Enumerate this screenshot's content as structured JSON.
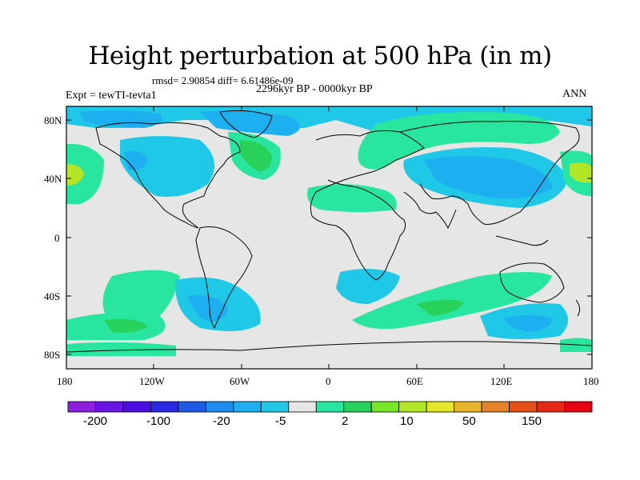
{
  "title": "Height perturbation at 500 hPa (in m)",
  "rmsd_line": "rmsd= 2.90854 diff= 6.61486e-09",
  "left_string": "Expt = tewTI-tevta1",
  "center_string": "2296kyr BP - 0000kyr BP",
  "right_string": "ANN",
  "lat_ticks": [
    "80N",
    "40N",
    "0",
    "40S",
    "80S"
  ],
  "lon_ticks": [
    "180",
    "120W",
    "60W",
    "0",
    "60E",
    "120E",
    "180"
  ],
  "colorbar": {
    "colors": [
      "#8c1ee0",
      "#6a14e6",
      "#4b0fe6",
      "#2828e6",
      "#1e5ae6",
      "#1e8cf0",
      "#1eaff0",
      "#1ec8e6",
      "#e6e6e6",
      "#28e6a0",
      "#28d25a",
      "#78e628",
      "#b4e628",
      "#e6e628",
      "#e6b428",
      "#e68228",
      "#e65014",
      "#e62814",
      "#e60014"
    ],
    "labels": [
      "-200",
      "-100",
      "-20",
      "-5",
      "2",
      "10",
      "50",
      "150"
    ],
    "label_ids": [
      "label-neg200",
      "label-neg100",
      "label-neg20",
      "label-neg5",
      "label-2",
      "label-10",
      "label-50",
      "label-150"
    ]
  },
  "colors": {
    "ocean_land_background": "#e6e6e6",
    "cyan_light": "#1ec8e6",
    "blue_light": "#1eaff0",
    "green_light": "#28e6a0",
    "green_mid": "#28d25a",
    "yellow_green": "#b4e628"
  }
}
